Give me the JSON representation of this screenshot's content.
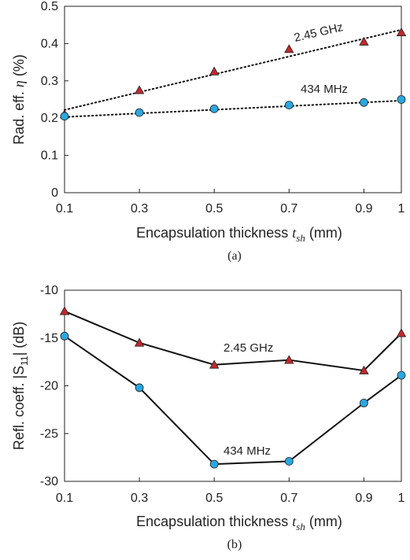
{
  "chart_data": [
    {
      "type": "scatter",
      "panel_caption": "(a)",
      "xlabel_parts": {
        "main": "Encapsulation thickness ",
        "var": "t",
        "sub": "sh",
        "unit": " (mm)"
      },
      "ylabel_parts": {
        "main": "Rad. eff. ",
        "var": "η",
        "unit": " (%)"
      },
      "xlim": [
        0.1,
        1.0
      ],
      "ylim": [
        0,
        0.5
      ],
      "xticks": [
        "0.1",
        "0.3",
        "0.5",
        "0.7",
        "0.9",
        "1"
      ],
      "yticks": [
        "0",
        "0.1",
        "0.2",
        "0.3",
        "0.4",
        "0.5"
      ],
      "x": [
        0.1,
        0.3,
        0.5,
        0.7,
        0.9,
        1.0
      ],
      "series": [
        {
          "name": "2.45 GHz",
          "marker": "triangle",
          "color": "#c0282d",
          "values": [
            0.21,
            0.275,
            0.325,
            0.385,
            0.405,
            0.43
          ],
          "fit": [
            0.222,
            0.437
          ]
        },
        {
          "name": "434 MHz",
          "marker": "circle",
          "color": "#29a8e0",
          "values": [
            0.205,
            0.215,
            0.225,
            0.235,
            0.242,
            0.25
          ],
          "fit": [
            0.203,
            0.247
          ]
        }
      ],
      "annotations": [
        "2.45 GHz",
        "434 MHz"
      ]
    },
    {
      "type": "line",
      "panel_caption": "(b)",
      "xlabel_parts": {
        "main": "Encapsulation thickness ",
        "var": "t",
        "sub": "sh",
        "unit": " (mm)"
      },
      "ylabel_parts": {
        "main": "Refl. coeff. |S",
        "sub": "11",
        "unit": "| (dB)"
      },
      "xlim": [
        0.1,
        1.0
      ],
      "ylim": [
        -30,
        -10
      ],
      "xticks": [
        "0.1",
        "0.3",
        "0.5",
        "0.7",
        "0.9",
        "1"
      ],
      "yticks": [
        "-10",
        "-15",
        "-20",
        "-25",
        "-30"
      ],
      "x": [
        0.1,
        0.3,
        0.5,
        0.7,
        0.9,
        1.0
      ],
      "series": [
        {
          "name": "2.45 GHz",
          "marker": "triangle",
          "color": "#c0282d",
          "values": [
            -12.2,
            -15.5,
            -17.8,
            -17.3,
            -18.4,
            -14.5
          ]
        },
        {
          "name": "434 MHz",
          "marker": "circle",
          "color": "#29a8e0",
          "values": [
            -14.8,
            -20.2,
            -28.2,
            -27.9,
            -21.8,
            -18.9
          ]
        }
      ],
      "annotations": [
        "2.45 GHz",
        "434 MHz"
      ]
    }
  ]
}
